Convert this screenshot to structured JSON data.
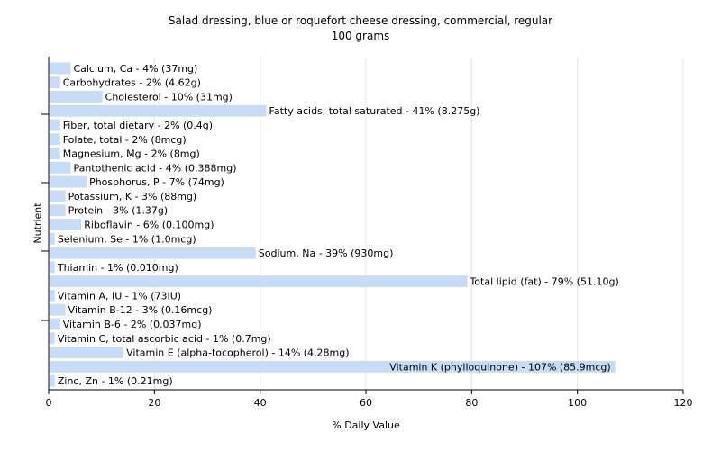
{
  "chart_data": {
    "type": "bar",
    "orientation": "horizontal",
    "title": "Salad dressing, blue or roquefort cheese dressing, commercial, regular",
    "subtitle": "100 grams",
    "xlabel": "% Daily Value",
    "ylabel": "Nutrient",
    "xlim": [
      0,
      120
    ],
    "x_ticks": [
      "0",
      "20",
      "40",
      "60",
      "80",
      "100",
      "120"
    ],
    "grid": "vertical",
    "bar_color": "#c6dcf7",
    "bars": [
      {
        "name": "Calcium, Ca",
        "value": 4,
        "label": "Calcium, Ca - 4% (37mg)"
      },
      {
        "name": "Carbohydrates",
        "value": 2,
        "label": "Carbohydrates - 2% (4.62g)"
      },
      {
        "name": "Cholesterol",
        "value": 10,
        "label": "Cholesterol - 10% (31mg)"
      },
      {
        "name": "Fatty acids, total saturated",
        "value": 41,
        "label": "Fatty acids, total saturated - 41% (8.275g)"
      },
      {
        "name": "Fiber, total dietary",
        "value": 2,
        "label": "Fiber, total dietary - 2% (0.4g)"
      },
      {
        "name": "Folate, total",
        "value": 2,
        "label": "Folate, total - 2% (8mcg)"
      },
      {
        "name": "Magnesium, Mg",
        "value": 2,
        "label": "Magnesium, Mg - 2% (8mg)"
      },
      {
        "name": "Pantothenic acid",
        "value": 4,
        "label": "Pantothenic acid - 4% (0.388mg)"
      },
      {
        "name": "Phosphorus, P",
        "value": 7,
        "label": "Phosphorus, P - 7% (74mg)"
      },
      {
        "name": "Potassium, K",
        "value": 3,
        "label": "Potassium, K - 3% (88mg)"
      },
      {
        "name": "Protein",
        "value": 3,
        "label": "Protein - 3% (1.37g)"
      },
      {
        "name": "Riboflavin",
        "value": 6,
        "label": "Riboflavin - 6% (0.100mg)"
      },
      {
        "name": "Selenium, Se",
        "value": 1,
        "label": "Selenium, Se - 1% (1.0mcg)"
      },
      {
        "name": "Sodium, Na",
        "value": 39,
        "label": "Sodium, Na - 39% (930mg)"
      },
      {
        "name": "Thiamin",
        "value": 1,
        "label": "Thiamin - 1% (0.010mg)"
      },
      {
        "name": "Total lipid (fat)",
        "value": 79,
        "label": "Total lipid (fat) - 79% (51.10g)"
      },
      {
        "name": "Vitamin A, IU",
        "value": 1,
        "label": "Vitamin A, IU - 1% (73IU)"
      },
      {
        "name": "Vitamin B-12",
        "value": 3,
        "label": "Vitamin B-12 - 3% (0.16mcg)"
      },
      {
        "name": "Vitamin B-6",
        "value": 2,
        "label": "Vitamin B-6 - 2% (0.037mg)"
      },
      {
        "name": "Vitamin C, total ascorbic acid",
        "value": 1,
        "label": "Vitamin C, total ascorbic acid - 1% (0.7mg)"
      },
      {
        "name": "Vitamin E (alpha-tocopherol)",
        "value": 14,
        "label": "Vitamin E (alpha-tocopherol) - 14% (4.28mg)"
      },
      {
        "name": "Vitamin K (phylloquinone)",
        "value": 107,
        "label": "Vitamin K (phylloquinone) - 107% (85.9mcg)"
      },
      {
        "name": "Zinc, Zn",
        "value": 1,
        "label": "Zinc, Zn - 1% (0.21mg)"
      }
    ]
  }
}
